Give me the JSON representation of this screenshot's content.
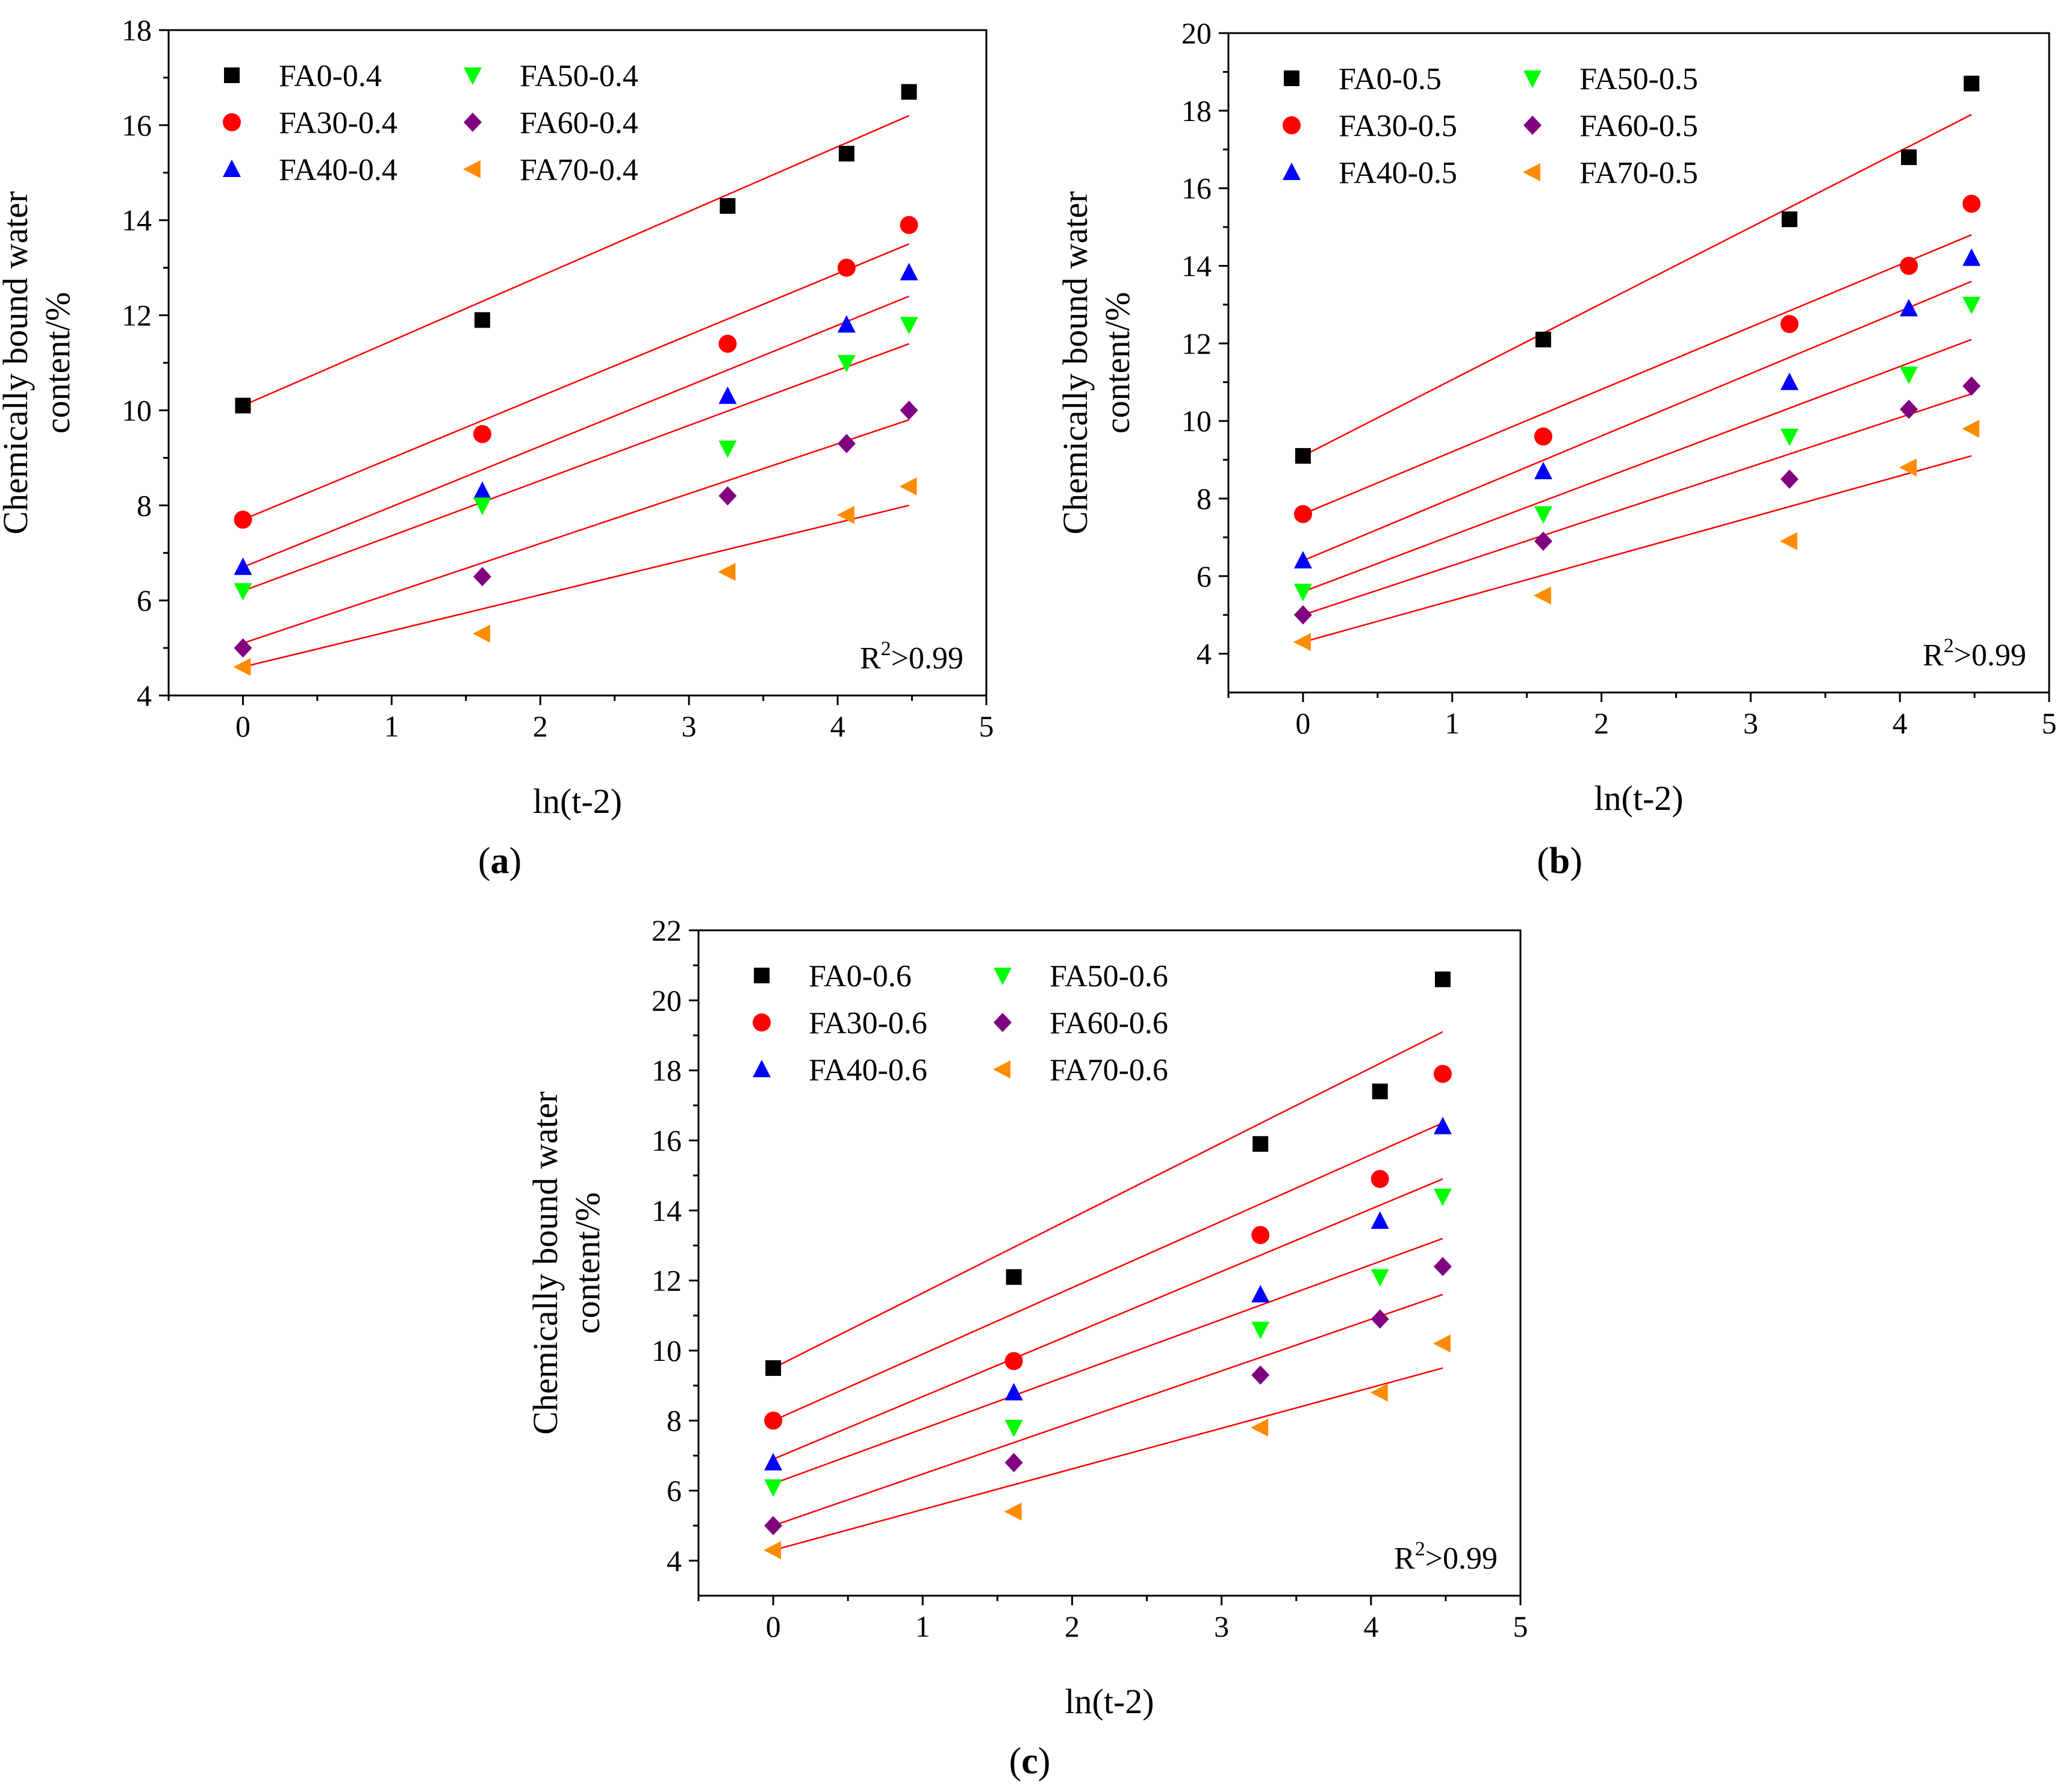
{
  "figure": {
    "panel_labels": [
      "(a)",
      "(b)",
      "(c)"
    ]
  },
  "markers": {
    "FA0": {
      "shape": "square",
      "color": "#000000"
    },
    "FA30": {
      "shape": "circle",
      "color": "#ff0000"
    },
    "FA40": {
      "shape": "triangle-up",
      "color": "#0000ff"
    },
    "FA50": {
      "shape": "triangle-down",
      "color": "#00ff00"
    },
    "FA60": {
      "shape": "diamond",
      "color": "#800080"
    },
    "FA70": {
      "shape": "triangle-left",
      "color": "#ff8c00"
    }
  },
  "fit_line_color": "#ff0000",
  "chart_data": [
    {
      "panel": "(a)",
      "type": "scatter",
      "xlabel": "ln(t-2)",
      "ylabel": "Chemically bound water content/%",
      "ylabel_lines": [
        "Chemically bound water",
        "content/%"
      ],
      "xlim": [
        -0.5,
        5
      ],
      "ylim": [
        4,
        18
      ],
      "xticks": [
        0,
        1,
        2,
        3,
        4,
        5
      ],
      "yticks": [
        4,
        6,
        8,
        10,
        12,
        14,
        16,
        18
      ],
      "annotation": {
        "text": "R",
        "sup": "2",
        "rest": ">0.99"
      },
      "x": [
        0,
        1.61,
        3.26,
        4.06,
        4.48
      ],
      "series": [
        {
          "name": "FA0-0.4",
          "key": "FA0",
          "values": [
            10.1,
            11.9,
            14.3,
            15.4,
            16.7
          ],
          "fit": [
            10.1,
            16.2
          ]
        },
        {
          "name": "FA30-0.4",
          "key": "FA30",
          "values": [
            7.7,
            9.5,
            11.4,
            13.0,
            13.9
          ],
          "fit": [
            7.7,
            13.5
          ]
        },
        {
          "name": "FA40-0.4",
          "key": "FA40",
          "values": [
            6.7,
            8.3,
            10.3,
            11.8,
            12.9
          ],
          "fit": [
            6.7,
            12.4
          ]
        },
        {
          "name": "FA50-0.4",
          "key": "FA50",
          "values": [
            6.2,
            8.0,
            9.2,
            11.0,
            11.8
          ],
          "fit": [
            6.2,
            11.4
          ]
        },
        {
          "name": "FA60-0.4",
          "key": "FA60",
          "values": [
            5.0,
            6.5,
            8.2,
            9.3,
            10.0
          ],
          "fit": [
            5.1,
            9.8
          ]
        },
        {
          "name": "FA70-0.4",
          "key": "FA70",
          "values": [
            4.6,
            5.3,
            6.6,
            7.8,
            8.4
          ],
          "fit": [
            4.6,
            8.0
          ]
        }
      ]
    },
    {
      "panel": "(b)",
      "type": "scatter",
      "xlabel": "ln(t-2)",
      "ylabel": "Chemically bound water content/%",
      "ylabel_lines": [
        "Chemically bound water",
        "content/%"
      ],
      "xlim": [
        -0.5,
        5
      ],
      "ylim": [
        3,
        20
      ],
      "xticks": [
        0,
        1,
        2,
        3,
        4,
        5
      ],
      "yticks": [
        4,
        6,
        8,
        10,
        12,
        14,
        16,
        18,
        20
      ],
      "annotation": {
        "text": "R",
        "sup": "2",
        "rest": ">0.99"
      },
      "x": [
        0,
        1.61,
        3.26,
        4.06,
        4.48
      ],
      "series": [
        {
          "name": "FA0-0.5",
          "key": "FA0",
          "values": [
            9.1,
            12.1,
            15.2,
            16.8,
            18.7
          ],
          "fit": [
            9.1,
            17.9
          ]
        },
        {
          "name": "FA30-0.5",
          "key": "FA30",
          "values": [
            7.6,
            9.6,
            12.5,
            14.0,
            15.6
          ],
          "fit": [
            7.6,
            14.8
          ]
        },
        {
          "name": "FA40-0.5",
          "key": "FA40",
          "values": [
            6.4,
            8.7,
            11.0,
            12.9,
            14.2
          ],
          "fit": [
            6.4,
            13.6
          ]
        },
        {
          "name": "FA50-0.5",
          "key": "FA50",
          "values": [
            5.6,
            7.6,
            9.6,
            11.2,
            13.0
          ],
          "fit": [
            5.6,
            12.1
          ]
        },
        {
          "name": "FA60-0.5",
          "key": "FA60",
          "values": [
            5.0,
            6.9,
            8.5,
            10.3,
            10.9
          ],
          "fit": [
            5.0,
            10.7
          ]
        },
        {
          "name": "FA70-0.5",
          "key": "FA70",
          "values": [
            4.3,
            5.5,
            6.9,
            8.8,
            9.8
          ],
          "fit": [
            4.3,
            9.1
          ]
        }
      ]
    },
    {
      "panel": "(c)",
      "type": "scatter",
      "xlabel": "ln(t-2)",
      "ylabel": "Chemically bound water content/%",
      "ylabel_lines": [
        "Chemically bound water",
        "content/%"
      ],
      "xlim": [
        -0.5,
        5
      ],
      "ylim": [
        3,
        22
      ],
      "xticks": [
        0,
        1,
        2,
        3,
        4,
        5
      ],
      "yticks": [
        4,
        6,
        8,
        10,
        12,
        14,
        16,
        18,
        20,
        22
      ],
      "annotation": {
        "text": "R",
        "sup": "2",
        "rest": ">0.99"
      },
      "x": [
        0,
        1.61,
        3.26,
        4.06,
        4.48
      ],
      "series": [
        {
          "name": "FA0-0.6",
          "key": "FA0",
          "values": [
            9.5,
            12.1,
            15.9,
            17.4,
            20.6
          ],
          "fit": [
            9.5,
            19.1
          ]
        },
        {
          "name": "FA30-0.6",
          "key": "FA30",
          "values": [
            8.0,
            9.7,
            13.3,
            14.9,
            17.9
          ],
          "fit": [
            8.0,
            16.5
          ]
        },
        {
          "name": "FA40-0.6",
          "key": "FA40",
          "values": [
            6.8,
            8.8,
            11.6,
            13.7,
            16.4
          ],
          "fit": [
            6.9,
            14.9
          ]
        },
        {
          "name": "FA50-0.6",
          "key": "FA50",
          "values": [
            6.1,
            7.8,
            10.6,
            12.1,
            14.4
          ],
          "fit": [
            6.2,
            13.2
          ]
        },
        {
          "name": "FA60-0.6",
          "key": "FA60",
          "values": [
            5.0,
            6.8,
            9.3,
            10.9,
            12.4
          ],
          "fit": [
            5.0,
            11.6
          ]
        },
        {
          "name": "FA70-0.6",
          "key": "FA70",
          "values": [
            4.3,
            5.4,
            7.8,
            8.8,
            10.2
          ],
          "fit": [
            4.3,
            9.5
          ]
        }
      ]
    }
  ]
}
